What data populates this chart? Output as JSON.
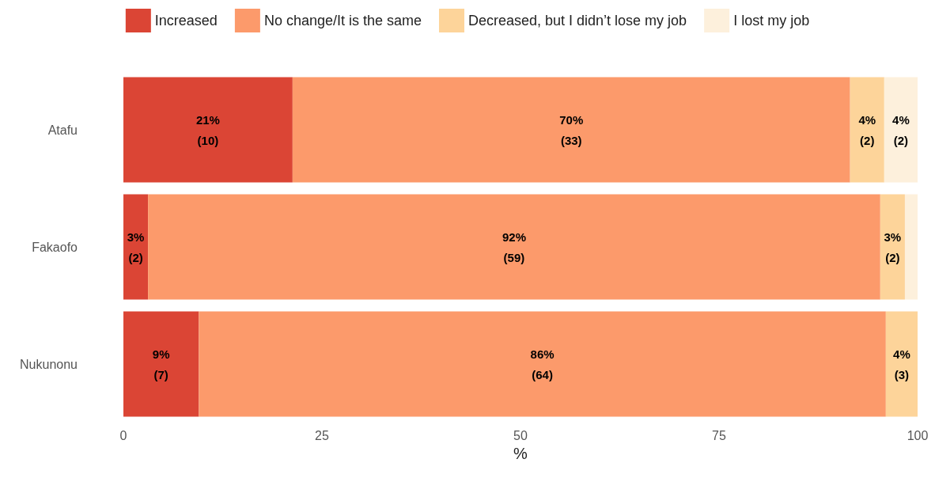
{
  "chart_data": {
    "type": "bar",
    "orientation": "horizontal",
    "stacked": true,
    "xlabel": "%",
    "categories": [
      "Atafu",
      "Fakaofo",
      "Nukunonu"
    ],
    "series": [
      {
        "name": "Increased",
        "color": "#db4535",
        "values": [
          21.3,
          3.1,
          9.5
        ],
        "value_labels": [
          "21%\n(10)",
          "3%\n(2)",
          "9%\n(7)"
        ]
      },
      {
        "name": "No change/It is the same",
        "color": "#fc9a6b",
        "values": [
          70.2,
          92.2,
          86.5
        ],
        "value_labels": [
          "70%\n(33)",
          "92%\n(59)",
          "86%\n(64)"
        ]
      },
      {
        "name": "Decreased, but I didn’t lose my job",
        "color": "#fdd49a",
        "values": [
          4.3,
          3.1,
          4.1
        ],
        "value_labels": [
          "4%\n(2)",
          "3%\n(2)",
          "4%\n(3)"
        ]
      },
      {
        "name": "I lost my job",
        "color": "#fdf0dc",
        "values": [
          4.3,
          1.6,
          null
        ],
        "value_labels": [
          "4%\n(2)",
          null,
          null
        ]
      }
    ],
    "xlim": [
      0,
      100
    ],
    "xticks": [
      0,
      25,
      50,
      75,
      100
    ],
    "grid": false,
    "legend": "top"
  }
}
